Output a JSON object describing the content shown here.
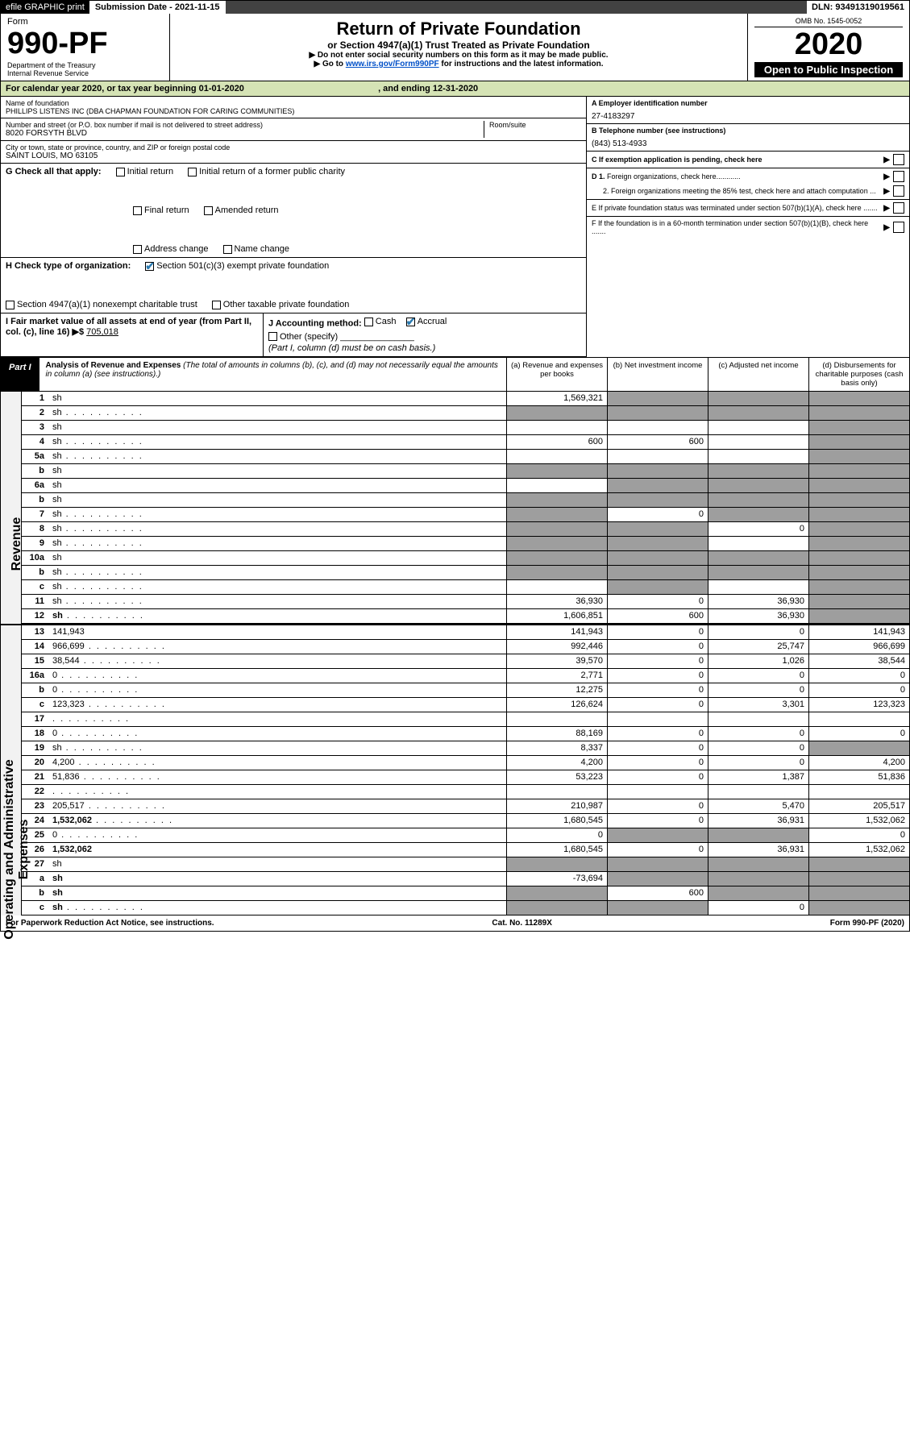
{
  "topbar": {
    "efile": "efile GRAPHIC print",
    "subdate_label": "Submission Date - 2021-11-15",
    "dln": "DLN: 93491319019561"
  },
  "header": {
    "form_word": "Form",
    "form_no": "990-PF",
    "dept": "Department of the Treasury",
    "irs": "Internal Revenue Service",
    "title": "Return of Private Foundation",
    "subtitle": "or Section 4947(a)(1) Trust Treated as Private Foundation",
    "instr1": "▶ Do not enter social security numbers on this form as it may be made public.",
    "instr2_pre": "▶ Go to ",
    "instr2_link": "www.irs.gov/Form990PF",
    "instr2_post": " for instructions and the latest information.",
    "omb": "OMB No. 1545-0052",
    "year": "2020",
    "open": "Open to Public Inspection"
  },
  "cal": {
    "line_pre": "For calendar year 2020, or tax year beginning ",
    "begin": "01-01-2020",
    "line_mid": " , and ending ",
    "end": "12-31-2020"
  },
  "info": {
    "name_label": "Name of foundation",
    "name": "PHILLIPS LISTENS INC (DBA CHAPMAN FOUNDATION FOR CARING COMMUNITIES)",
    "addr_label": "Number and street (or P.O. box number if mail is not delivered to street address)",
    "addr": "8020 FORSYTH BLVD",
    "room_label": "Room/suite",
    "city_label": "City or town, state or province, country, and ZIP or foreign postal code",
    "city": "SAINT LOUIS, MO  63105",
    "a_label": "A Employer identification number",
    "a_val": "27-4183297",
    "b_label": "B Telephone number (see instructions)",
    "b_val": "(843) 513-4933",
    "c_label": "C If exemption application is pending, check here",
    "d1": "D 1. Foreign organizations, check here............",
    "d2": "2. Foreign organizations meeting the 85% test, check here and attach computation ...",
    "e": "E  If private foundation status was terminated under section 507(b)(1)(A), check here .......",
    "f": "F  If the foundation is in a 60-month termination under section 507(b)(1)(B), check here .......",
    "g_label": "G Check all that apply:",
    "g_opts": [
      "Initial return",
      "Initial return of a former public charity",
      "Final return",
      "Amended return",
      "Address change",
      "Name change"
    ],
    "h_label": "H Check type of organization:",
    "h_opts": [
      "Section 501(c)(3) exempt private foundation",
      "Section 4947(a)(1) nonexempt charitable trust",
      "Other taxable private foundation"
    ],
    "i_label": "I Fair market value of all assets at end of year (from Part II, col. (c), line 16) ▶$ ",
    "i_val": "705,018",
    "j_label": "J Accounting method:",
    "j_opts": [
      "Cash",
      "Accrual"
    ],
    "j_other": "Other (specify)",
    "j_note": "(Part I, column (d) must be on cash basis.)"
  },
  "part1": {
    "label": "Part I",
    "title": "Analysis of Revenue and Expenses",
    "title_note": " (The total of amounts in columns (b), (c), and (d) may not necessarily equal the amounts in column (a) (see instructions).)",
    "col_a": "(a)  Revenue and expenses per books",
    "col_b": "(b)  Net investment income",
    "col_c": "(c)  Adjusted net income",
    "col_d": "(d)  Disbursements for charitable purposes (cash basis only)"
  },
  "sidelabels": {
    "rev": "Revenue",
    "exp": "Operating and Administrative Expenses"
  },
  "rows": [
    {
      "n": "1",
      "d": "sh",
      "a": "1,569,321",
      "b": "sh",
      "c": "sh"
    },
    {
      "n": "2",
      "d": "sh",
      "dots": 1,
      "a": "sh",
      "b": "sh",
      "c": "sh"
    },
    {
      "n": "3",
      "d": "sh",
      "a": "",
      "b": "",
      "c": ""
    },
    {
      "n": "4",
      "d": "sh",
      "dots": 1,
      "a": "600",
      "b": "600",
      "c": ""
    },
    {
      "n": "5a",
      "d": "sh",
      "dots": 1,
      "a": "",
      "b": "",
      "c": ""
    },
    {
      "n": "b",
      "d": "sh",
      "a": "sh",
      "b": "sh",
      "c": "sh"
    },
    {
      "n": "6a",
      "d": "sh",
      "a": "",
      "b": "sh",
      "c": "sh"
    },
    {
      "n": "b",
      "d": "sh",
      "a": "sh",
      "b": "sh",
      "c": "sh"
    },
    {
      "n": "7",
      "d": "sh",
      "dots": 1,
      "a": "sh",
      "b": "0",
      "c": "sh"
    },
    {
      "n": "8",
      "d": "sh",
      "dots": 1,
      "a": "sh",
      "b": "sh",
      "c": "0"
    },
    {
      "n": "9",
      "d": "sh",
      "dots": 1,
      "a": "sh",
      "b": "sh",
      "c": ""
    },
    {
      "n": "10a",
      "d": "sh",
      "a": "sh",
      "b": "sh",
      "c": "sh"
    },
    {
      "n": "b",
      "d": "sh",
      "dots": 1,
      "a": "sh",
      "b": "sh",
      "c": "sh"
    },
    {
      "n": "c",
      "d": "sh",
      "dots": 1,
      "a": "",
      "b": "sh",
      "c": ""
    },
    {
      "n": "11",
      "d": "sh",
      "dots": 1,
      "a": "36,930",
      "b": "0",
      "c": "36,930"
    },
    {
      "n": "12",
      "d": "sh",
      "bold": 1,
      "dots": 1,
      "a": "1,606,851",
      "b": "600",
      "c": "36,930"
    }
  ],
  "exprows": [
    {
      "n": "13",
      "d": "141,943",
      "a": "141,943",
      "b": "0",
      "c": "0"
    },
    {
      "n": "14",
      "d": "966,699",
      "dots": 1,
      "a": "992,446",
      "b": "0",
      "c": "25,747"
    },
    {
      "n": "15",
      "d": "38,544",
      "dots": 1,
      "a": "39,570",
      "b": "0",
      "c": "1,026"
    },
    {
      "n": "16a",
      "d": "0",
      "dots": 1,
      "a": "2,771",
      "b": "0",
      "c": "0"
    },
    {
      "n": "b",
      "d": "0",
      "dots": 1,
      "a": "12,275",
      "b": "0",
      "c": "0"
    },
    {
      "n": "c",
      "d": "123,323",
      "dots": 1,
      "a": "126,624",
      "b": "0",
      "c": "3,301"
    },
    {
      "n": "17",
      "d": "",
      "dots": 1,
      "a": "",
      "b": "",
      "c": ""
    },
    {
      "n": "18",
      "d": "0",
      "dots": 1,
      "a": "88,169",
      "b": "0",
      "c": "0"
    },
    {
      "n": "19",
      "d": "sh",
      "dots": 1,
      "a": "8,337",
      "b": "0",
      "c": "0"
    },
    {
      "n": "20",
      "d": "4,200",
      "dots": 1,
      "a": "4,200",
      "b": "0",
      "c": "0"
    },
    {
      "n": "21",
      "d": "51,836",
      "dots": 1,
      "a": "53,223",
      "b": "0",
      "c": "1,387"
    },
    {
      "n": "22",
      "d": "",
      "dots": 1,
      "a": "",
      "b": "",
      "c": ""
    },
    {
      "n": "23",
      "d": "205,517",
      "dots": 1,
      "a": "210,987",
      "b": "0",
      "c": "5,470"
    },
    {
      "n": "24",
      "d": "1,532,062",
      "bold": 1,
      "dots": 1,
      "a": "1,680,545",
      "b": "0",
      "c": "36,931"
    },
    {
      "n": "25",
      "d": "0",
      "dots": 1,
      "a": "0",
      "b": "sh",
      "c": "sh"
    },
    {
      "n": "26",
      "d": "1,532,062",
      "bold": 1,
      "a": "1,680,545",
      "b": "0",
      "c": "36,931"
    },
    {
      "n": "27",
      "d": "sh",
      "a": "sh",
      "b": "sh",
      "c": "sh"
    },
    {
      "n": "a",
      "d": "sh",
      "bold": 1,
      "a": "-73,694",
      "b": "sh",
      "c": "sh"
    },
    {
      "n": "b",
      "d": "sh",
      "bold": 1,
      "a": "sh",
      "b": "600",
      "c": "sh"
    },
    {
      "n": "c",
      "d": "sh",
      "bold": 1,
      "dots": 1,
      "a": "sh",
      "b": "sh",
      "c": "0"
    }
  ],
  "footer": {
    "left": "For Paperwork Reduction Act Notice, see instructions.",
    "mid": "Cat. No. 11289X",
    "right": "Form 990-PF (2020)"
  },
  "colors": {
    "greenish": "#d5e3b5",
    "shade": "#9e9e9e",
    "link": "#0050c8",
    "check": "#2a7ab0"
  }
}
